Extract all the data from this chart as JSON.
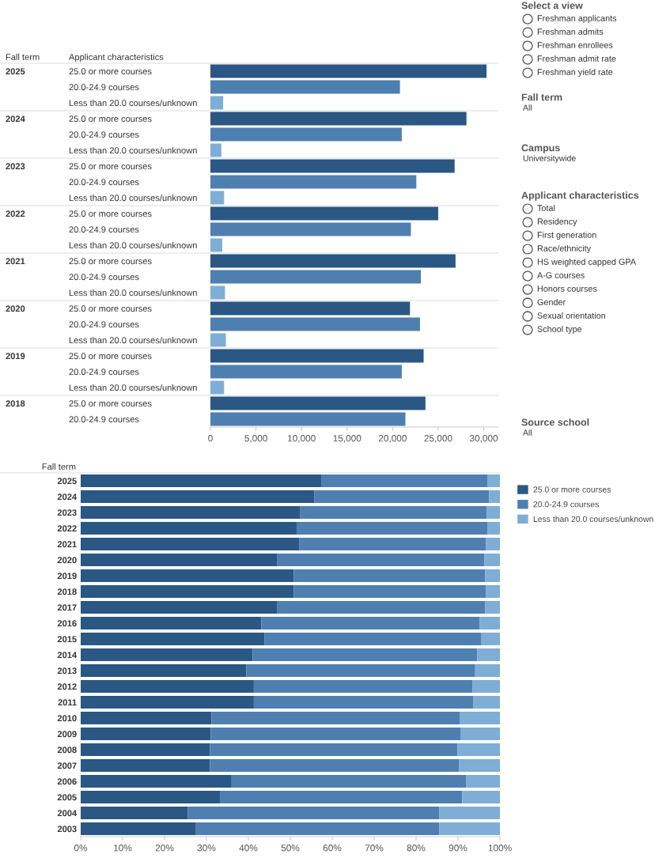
{
  "chart_data": [
    {
      "type": "bar",
      "orientation": "horizontal",
      "xlabel": null,
      "ylabel": "Applicant characteristics",
      "annotations": [
        "Fall term"
      ],
      "y2_categories": [
        "2025",
        null,
        null,
        "2024",
        null,
        null,
        "2023",
        null,
        null,
        "2022",
        null,
        null,
        "2021",
        null,
        null,
        "2020",
        null,
        null,
        "2019",
        null,
        null,
        "2018",
        null
      ],
      "categories": [
        "25.0 or more courses",
        "20.0-24.9 courses",
        "Less than 20.0 courses/unknown",
        "25.0 or more courses",
        "20.0-24.9 courses",
        "Less than 20.0 courses/unknown",
        "25.0 or more courses",
        "20.0-24.9 courses",
        "Less than 20.0 courses/unknown",
        "25.0 or more courses",
        "20.0-24.9 courses",
        "Less than 20.0 courses/unknown",
        "25.0 or more courses",
        "20.0-24.9 courses",
        "Less than 20.0 courses/unknown",
        "25.0 or more courses",
        "20.0-24.9 courses",
        "Less than 20.0 courses/unknown",
        "25.0 or more courses",
        "20.0-24.9 courses",
        "Less than 20.0 courses/unknown",
        "25.0 or more courses",
        "20.0-24.9 courses"
      ],
      "values": [
        30300,
        20800,
        1400,
        28100,
        21000,
        1200,
        26800,
        22600,
        1500,
        25000,
        22000,
        1300,
        26900,
        23100,
        1600,
        21900,
        23000,
        1700,
        23400,
        21000,
        1500,
        23600,
        21400
      ],
      "colors": [
        "#2a5783",
        "#4e7fb0",
        "#7eaed5",
        "#2a5783",
        "#4e7fb0",
        "#7eaed5",
        "#2a5783",
        "#4e7fb0",
        "#7eaed5",
        "#2a5783",
        "#4e7fb0",
        "#7eaed5",
        "#2a5783",
        "#4e7fb0",
        "#7eaed5",
        "#2a5783",
        "#4e7fb0",
        "#7eaed5",
        "#2a5783",
        "#4e7fb0",
        "#7eaed5",
        "#2a5783",
        "#4e7fb0"
      ],
      "xlim": [
        0,
        31600
      ],
      "xticks": [
        0,
        {
          "value": 5000,
          "label": "5,000"
        },
        {
          "value": 10000,
          "label": "10,000"
        },
        {
          "value": 15000,
          "label": "15,000"
        },
        {
          "value": 20000,
          "label": "20,000"
        },
        {
          "value": 25000,
          "label": "25,000"
        },
        {
          "value": 30000,
          "label": "30,000"
        }
      ],
      "grid": false,
      "legend": false
    },
    {
      "type": "bar",
      "orientation": "horizontal",
      "stacked": true,
      "ylabel": "Fall term",
      "legend": "right",
      "grid": false,
      "categories": [
        "2025",
        "2024",
        "2023",
        "2022",
        "2021",
        "2020",
        "2019",
        "2018",
        "2017",
        "2016",
        "2015",
        "2014",
        "2013",
        "2012",
        "2011",
        "2010",
        "2009",
        "2008",
        "2007",
        "2006",
        "2005",
        "2004",
        "2003"
      ],
      "series": [
        {
          "name": "25.0 or more courses",
          "color": "#2a5783",
          "values": [
            57.5,
            55.7,
            52.4,
            51.5,
            52.1,
            46.8,
            50.8,
            50.8,
            46.8,
            43.1,
            43.8,
            41.0,
            39.5,
            41.3,
            41.3,
            31.2,
            31.0,
            30.8,
            30.8,
            36.0,
            33.2,
            25.5,
            27.5
          ]
        },
        {
          "name": "20.0-24.9 courses",
          "color": "#4e7fb0",
          "values": [
            39.6,
            41.7,
            44.5,
            45.6,
            44.6,
            49.5,
            45.7,
            45.9,
            49.7,
            52.1,
            51.8,
            53.6,
            54.6,
            52.2,
            52.4,
            59.3,
            59.7,
            59.1,
            59.5,
            55.9,
            57.8,
            60.0,
            58.0
          ]
        },
        {
          "name": "Less than 20.0 courses/unknown",
          "color": "#7eaed5",
          "values": [
            2.9,
            2.6,
            3.1,
            2.9,
            3.3,
            3.7,
            3.5,
            3.3,
            3.5,
            4.8,
            4.4,
            5.4,
            5.9,
            6.5,
            6.3,
            9.5,
            9.3,
            10.1,
            9.7,
            8.1,
            9.0,
            14.5,
            14.5
          ]
        }
      ],
      "xlim": [
        0,
        100
      ],
      "xticks": [
        {
          "value": 0,
          "label": "0%"
        },
        {
          "value": 10,
          "label": "10%"
        },
        {
          "value": 20,
          "label": "20%"
        },
        {
          "value": 30,
          "label": "30%"
        },
        {
          "value": 40,
          "label": "40%"
        },
        {
          "value": 50,
          "label": "50%"
        },
        {
          "value": 60,
          "label": "60%"
        },
        {
          "value": 70,
          "label": "70%"
        },
        {
          "value": 80,
          "label": "80%"
        },
        {
          "value": 90,
          "label": "90%"
        },
        {
          "value": 100,
          "label": "100%"
        }
      ]
    },
    {
      "type": "other",
      "title": "Select a view",
      "categories": [
        "Freshman applicants",
        "Freshman admits",
        "Freshman enrollees",
        "Freshman admit rate",
        "Freshman yield rate"
      ]
    },
    {
      "type": "other",
      "title": "Fall term",
      "subtitle": "All"
    },
    {
      "type": "other",
      "title": "Campus",
      "subtitle": "Universitywide"
    },
    {
      "type": "other",
      "title": "Applicant characteristics",
      "categories": [
        "Total",
        "Residency",
        "First generation",
        "Race/ethnicity",
        "HS weighted capped GPA",
        "A-G courses",
        "Honors courses",
        "Gender",
        "Sexual orientation",
        "School type"
      ]
    },
    {
      "type": "other",
      "title": "Source school",
      "subtitle": "All"
    }
  ]
}
